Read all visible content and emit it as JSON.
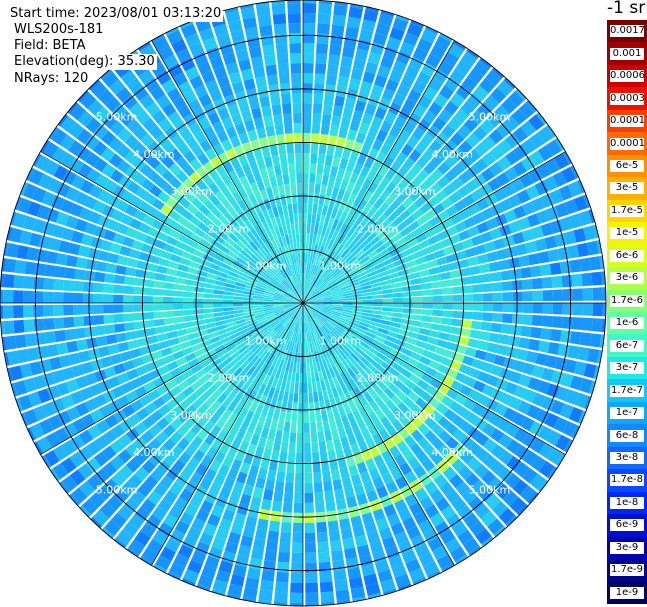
{
  "header": {
    "start_time": "Start time: 2023/08/01 03:13:20",
    "device": "WLS200s-181",
    "field": "Field: BETA",
    "elevation": "Elevation(deg): 35.30",
    "nrays": "NRays: 120"
  },
  "colorbar": {
    "unit": "-1 sr",
    "labels": [
      "0.0017",
      "0.001",
      "0.0006",
      "0.0003",
      "0.00017",
      "0.0001",
      "6e-5",
      "3e-5",
      "1.7e-5",
      "1e-5",
      "6e-6",
      "3e-6",
      "1.7e-6",
      "1e-6",
      "6e-7",
      "3e-7",
      "1.7e-7",
      "1e-7",
      "6e-8",
      "3e-8",
      "1.7e-8",
      "1e-8",
      "6e-9",
      "3e-9",
      "1.7e-9",
      "1e-9"
    ],
    "colors": [
      "#7a0000",
      "#a00000",
      "#cc0000",
      "#ee1100",
      "#ff4000",
      "#ff6a00",
      "#ff9000",
      "#ffb000",
      "#ffd400",
      "#f4f400",
      "#d8ff1e",
      "#b0ff48",
      "#88ff70",
      "#60ffa0",
      "#40f8c8",
      "#20e8e8",
      "#10c8f4",
      "#10a8ff",
      "#1488ff",
      "#1068ff",
      "#0848ff",
      "#0028f4",
      "#0010d0",
      "#0000b0",
      "#000090",
      "#000060"
    ]
  },
  "chart_data": {
    "type": "polar-ppi",
    "field": "BETA",
    "nrays": 120,
    "elevation_deg": 35.3,
    "range_rings_km": [
      1.0,
      2.0,
      3.0,
      4.0,
      5.0,
      6.0
    ],
    "ring_labels": [
      "1.00km",
      "2.00km",
      "3.00km",
      "4.00km",
      "5.00km",
      "6.00km"
    ],
    "max_range_km": 6.0,
    "spokes_deg": [
      0,
      30,
      60,
      90,
      120,
      150,
      180,
      210,
      240,
      270,
      300,
      330
    ]
  }
}
